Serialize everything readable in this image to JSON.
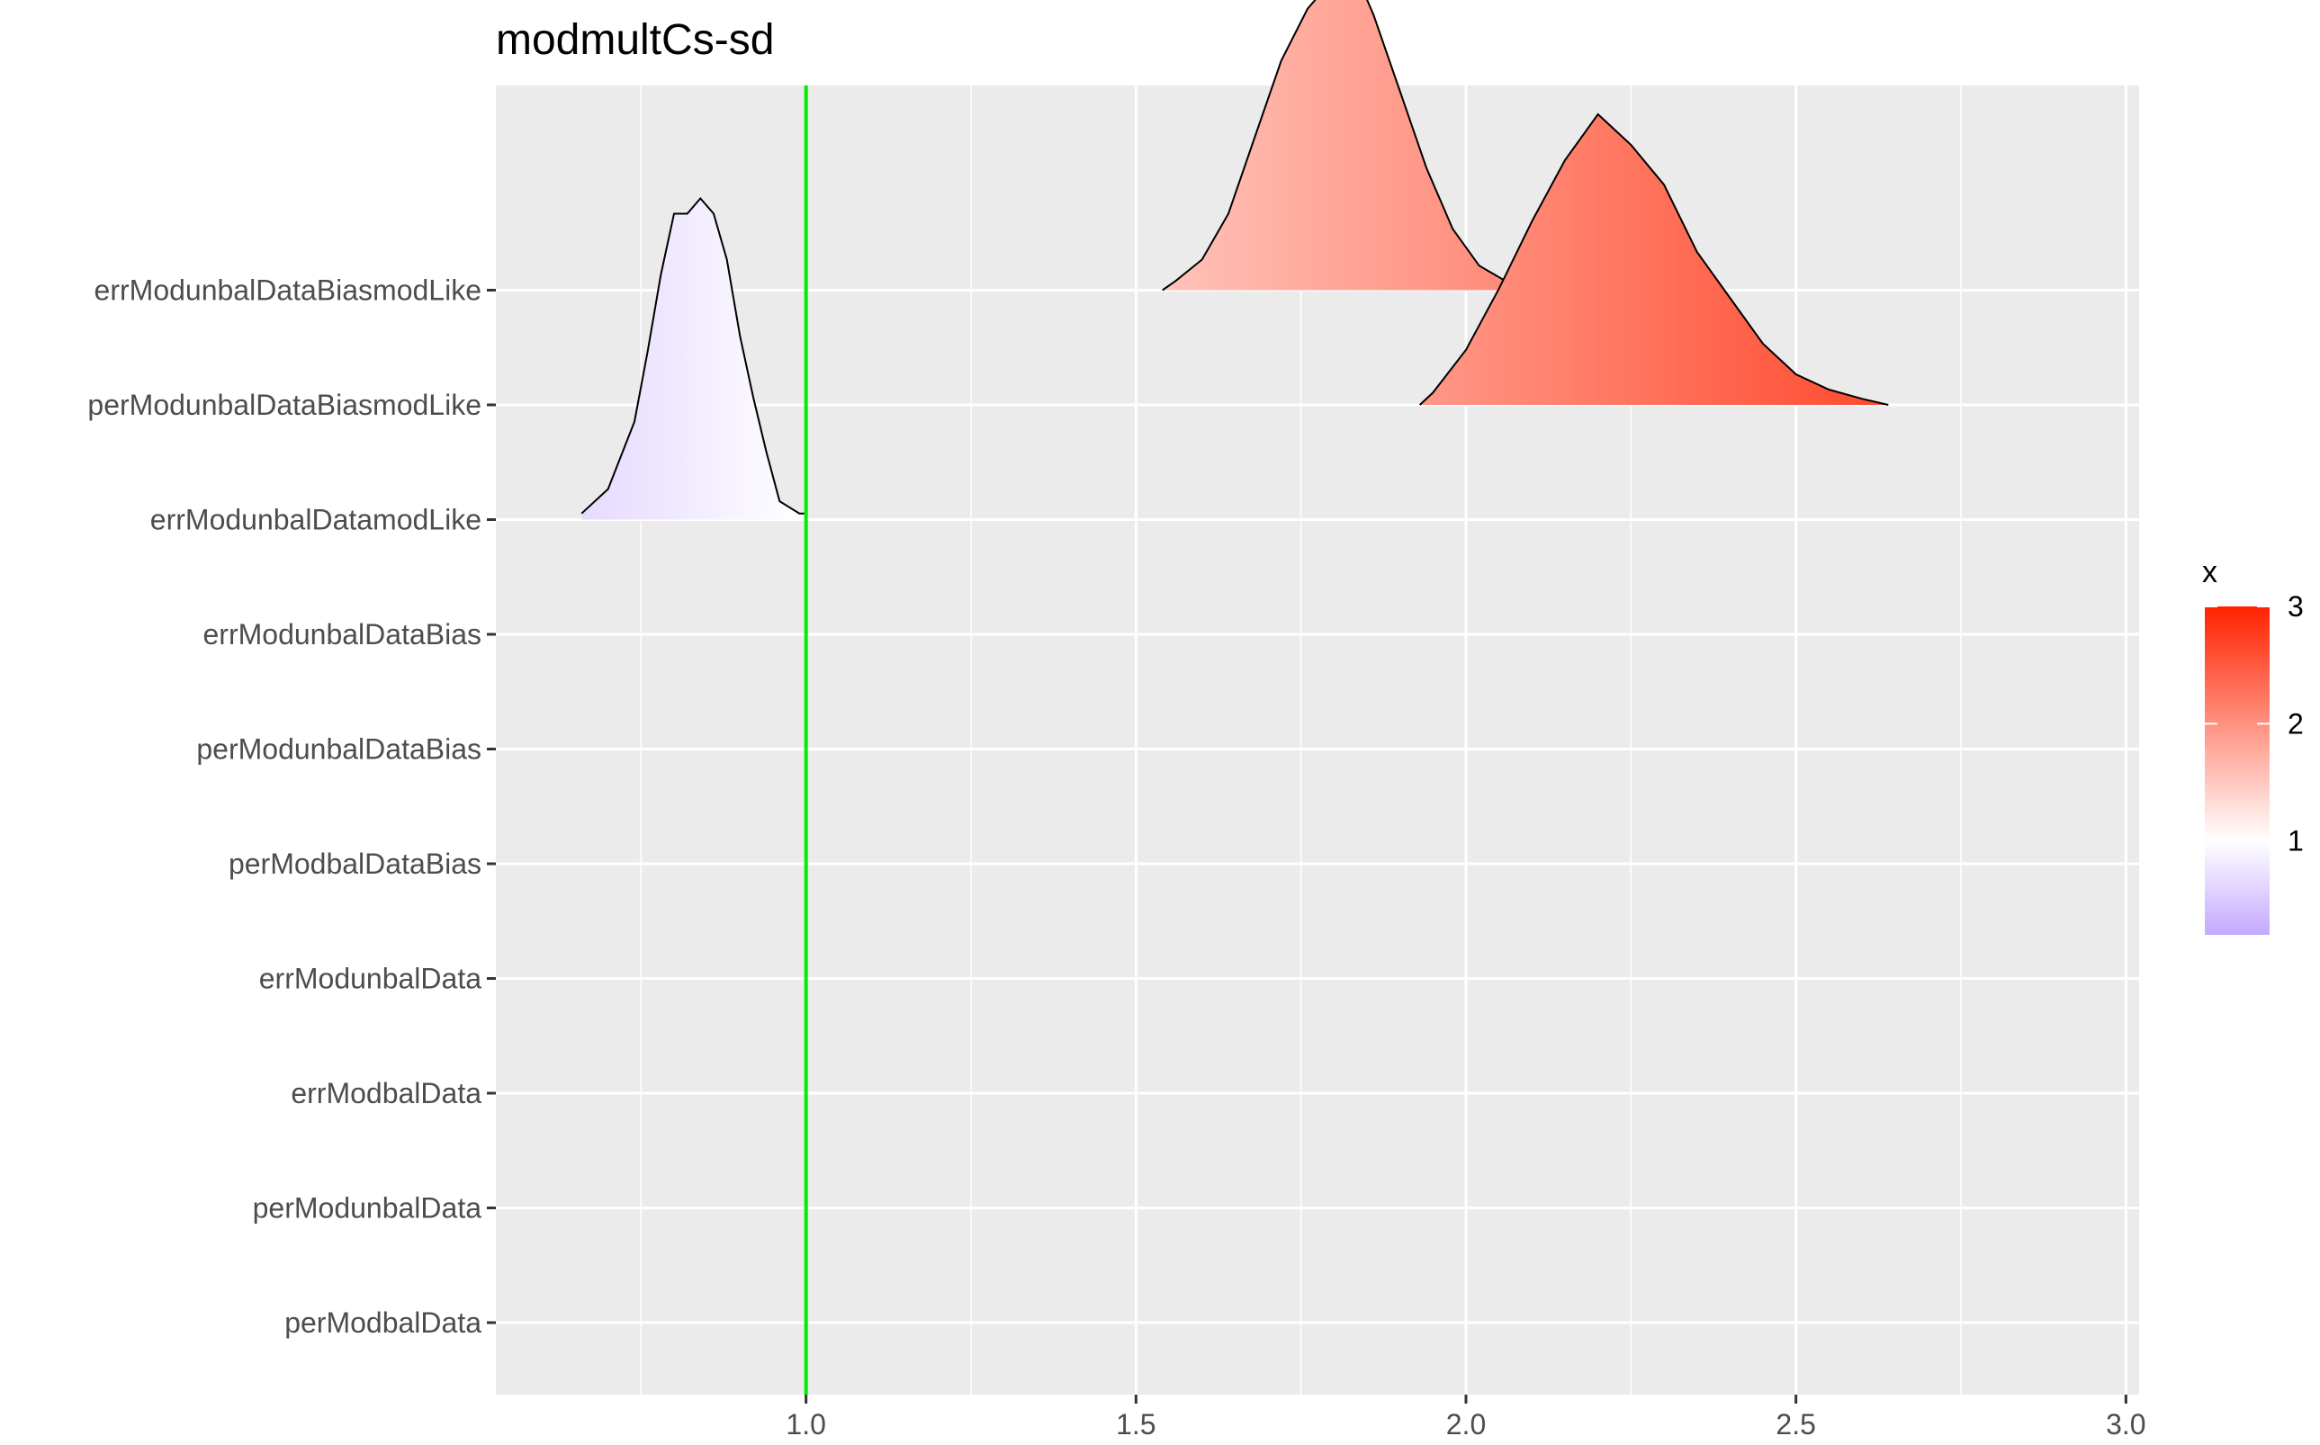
{
  "chart_data": {
    "type": "ridgeline-density",
    "title": "modmultCs-sd",
    "xlabel": "",
    "ylabel": "",
    "xlim": [
      0.53,
      3.02
    ],
    "x_ticks": [
      1.0,
      1.5,
      2.0,
      2.5,
      3.0
    ],
    "x_tick_labels": [
      "1.0",
      "1.5",
      "2.0",
      "2.5",
      "3.0"
    ],
    "x_minor_ticks": [
      0.75,
      1.25,
      1.75,
      2.25,
      2.75
    ],
    "categories": [
      "perModbalData",
      "perModunbalData",
      "errModbalData",
      "errModunbalData",
      "perModbalDataBias",
      "perModunbalDataBias",
      "errModunbalDataBias",
      "errModunbalDatamodLike",
      "perModunbalDataBiasmodLike",
      "errModunbalDataBiasmodLike"
    ],
    "series": [
      {
        "category": "errModunbalDatamodLike",
        "x": [
          0.66,
          0.7,
          0.74,
          0.76,
          0.78,
          0.8,
          0.82,
          0.84,
          0.86,
          0.88,
          0.9,
          0.92,
          0.94,
          0.96,
          0.99,
          1.0
        ],
        "density": [
          0.02,
          0.1,
          0.32,
          0.55,
          0.8,
          1.0,
          1.0,
          1.05,
          1.0,
          0.85,
          0.6,
          0.4,
          0.22,
          0.06,
          0.02,
          0.02
        ]
      },
      {
        "category": "perModunbalDataBiasmodLike",
        "x": [
          1.93,
          1.95,
          2.0,
          2.05,
          2.1,
          2.15,
          2.2,
          2.25,
          2.3,
          2.35,
          2.4,
          2.45,
          2.5,
          2.55,
          2.6,
          2.64
        ],
        "density": [
          0.0,
          0.04,
          0.18,
          0.38,
          0.6,
          0.8,
          0.95,
          0.85,
          0.72,
          0.5,
          0.35,
          0.2,
          0.1,
          0.05,
          0.02,
          0.0
        ]
      },
      {
        "category": "errModunbalDataBiasmodLike",
        "x": [
          1.54,
          1.56,
          1.6,
          1.64,
          1.68,
          1.72,
          1.76,
          1.8,
          1.83,
          1.86,
          1.9,
          1.94,
          1.98,
          2.02,
          2.06,
          2.08
        ],
        "density": [
          0.0,
          0.03,
          0.1,
          0.25,
          0.5,
          0.75,
          0.92,
          1.02,
          1.05,
          0.9,
          0.65,
          0.4,
          0.2,
          0.08,
          0.03,
          0.0
        ]
      }
    ],
    "reference_line": {
      "x": 1.0,
      "color": "#00ee00"
    },
    "legend": {
      "title": "x",
      "position": "right",
      "type": "gradient",
      "range": [
        0.2,
        3.0
      ],
      "ticks": [
        1,
        2,
        3
      ],
      "tick_labels": [
        "1",
        "2",
        "3"
      ],
      "low_color": "#c4a8ff",
      "mid_color": "#ffffff",
      "mid_value": 1,
      "high_color": "#ff2200"
    },
    "grid": true,
    "panel_background": "#ebebeb"
  }
}
